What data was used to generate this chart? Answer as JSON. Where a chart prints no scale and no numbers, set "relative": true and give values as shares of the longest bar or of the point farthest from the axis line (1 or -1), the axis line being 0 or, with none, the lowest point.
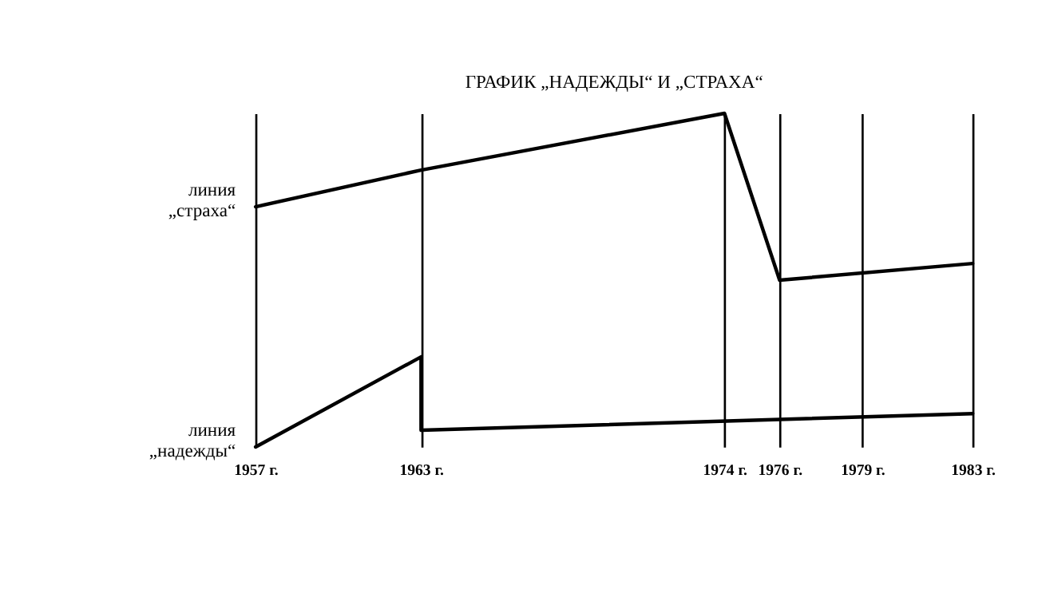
{
  "chart_data": {
    "type": "line",
    "title": "ГРАФИК „НАДЕЖДЫ“ И „СТРАХА“",
    "relative": true,
    "xlim": [
      1957,
      1983
    ],
    "xticks": [
      {
        "value": 1957,
        "label": "1957 г."
      },
      {
        "value": 1963,
        "label": "1963 г."
      },
      {
        "value": 1974,
        "label": "1974 г."
      },
      {
        "value": 1976,
        "label": "1976 г."
      },
      {
        "value": 1979,
        "label": "1979 г."
      },
      {
        "value": 1983,
        "label": "1983 г."
      }
    ],
    "grid": "x",
    "legend": false,
    "marker": "none",
    "line_style": "solid",
    "series": [
      {
        "name": "линия „страха“",
        "color": "#000000",
        "x": [
          1957,
          1963,
          1974,
          1976,
          1983
        ],
        "values": [
          0.72,
          0.83,
          1,
          0.5,
          0.55
        ]
      },
      {
        "name": "линия „надежды“",
        "color": "#000000",
        "x": [
          1957,
          1963,
          1963,
          1983
        ],
        "values": [
          0,
          0.27,
          0.05,
          0.1
        ]
      }
    ]
  }
}
